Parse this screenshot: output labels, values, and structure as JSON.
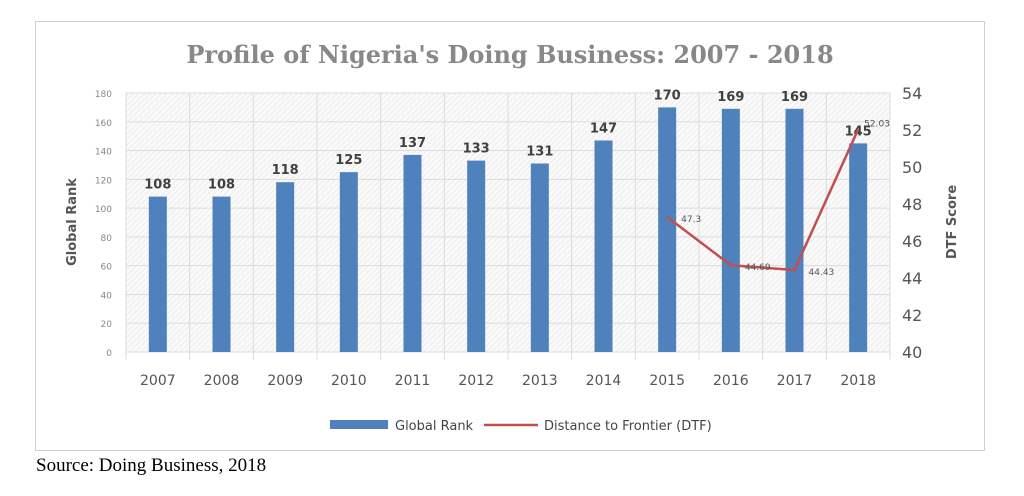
{
  "chart_data": {
    "type": "bar",
    "title": "Profile of Nigeria's Doing Business: 2007 - 2018",
    "categories": [
      "2007",
      "2008",
      "2009",
      "2010",
      "2011",
      "2012",
      "2013",
      "2014",
      "2015",
      "2016",
      "2017",
      "2018"
    ],
    "series": [
      {
        "name": "Global Rank",
        "type": "bar",
        "axis": "left",
        "color": "#4f81bd",
        "values": [
          108,
          108,
          118,
          125,
          137,
          133,
          131,
          147,
          170,
          169,
          169,
          145
        ]
      },
      {
        "name": "Distance to Frontier (DTF)",
        "type": "line",
        "axis": "right",
        "color": "#c0504d",
        "values": [
          null,
          null,
          null,
          null,
          null,
          null,
          null,
          null,
          47.3,
          44.69,
          44.43,
          52.03
        ],
        "labels": [
          "",
          "",
          "",
          "",
          "",
          "",
          "",
          "",
          "47.3",
          "44.69",
          "44.43",
          "52.03"
        ]
      }
    ],
    "ylabel": "Global Rank",
    "ylim": [
      0,
      180
    ],
    "yticks": [
      "0",
      "20",
      "40",
      "60",
      "80",
      "100",
      "120",
      "140",
      "160",
      "180"
    ],
    "y2label": "DTF Score",
    "y2lim": [
      40,
      54
    ],
    "y2ticks": [
      "40",
      "42",
      "44",
      "46",
      "48",
      "50",
      "52",
      "54"
    ],
    "grid": true,
    "legend": "bottom"
  },
  "source": "Source: Doing Business, 2018"
}
